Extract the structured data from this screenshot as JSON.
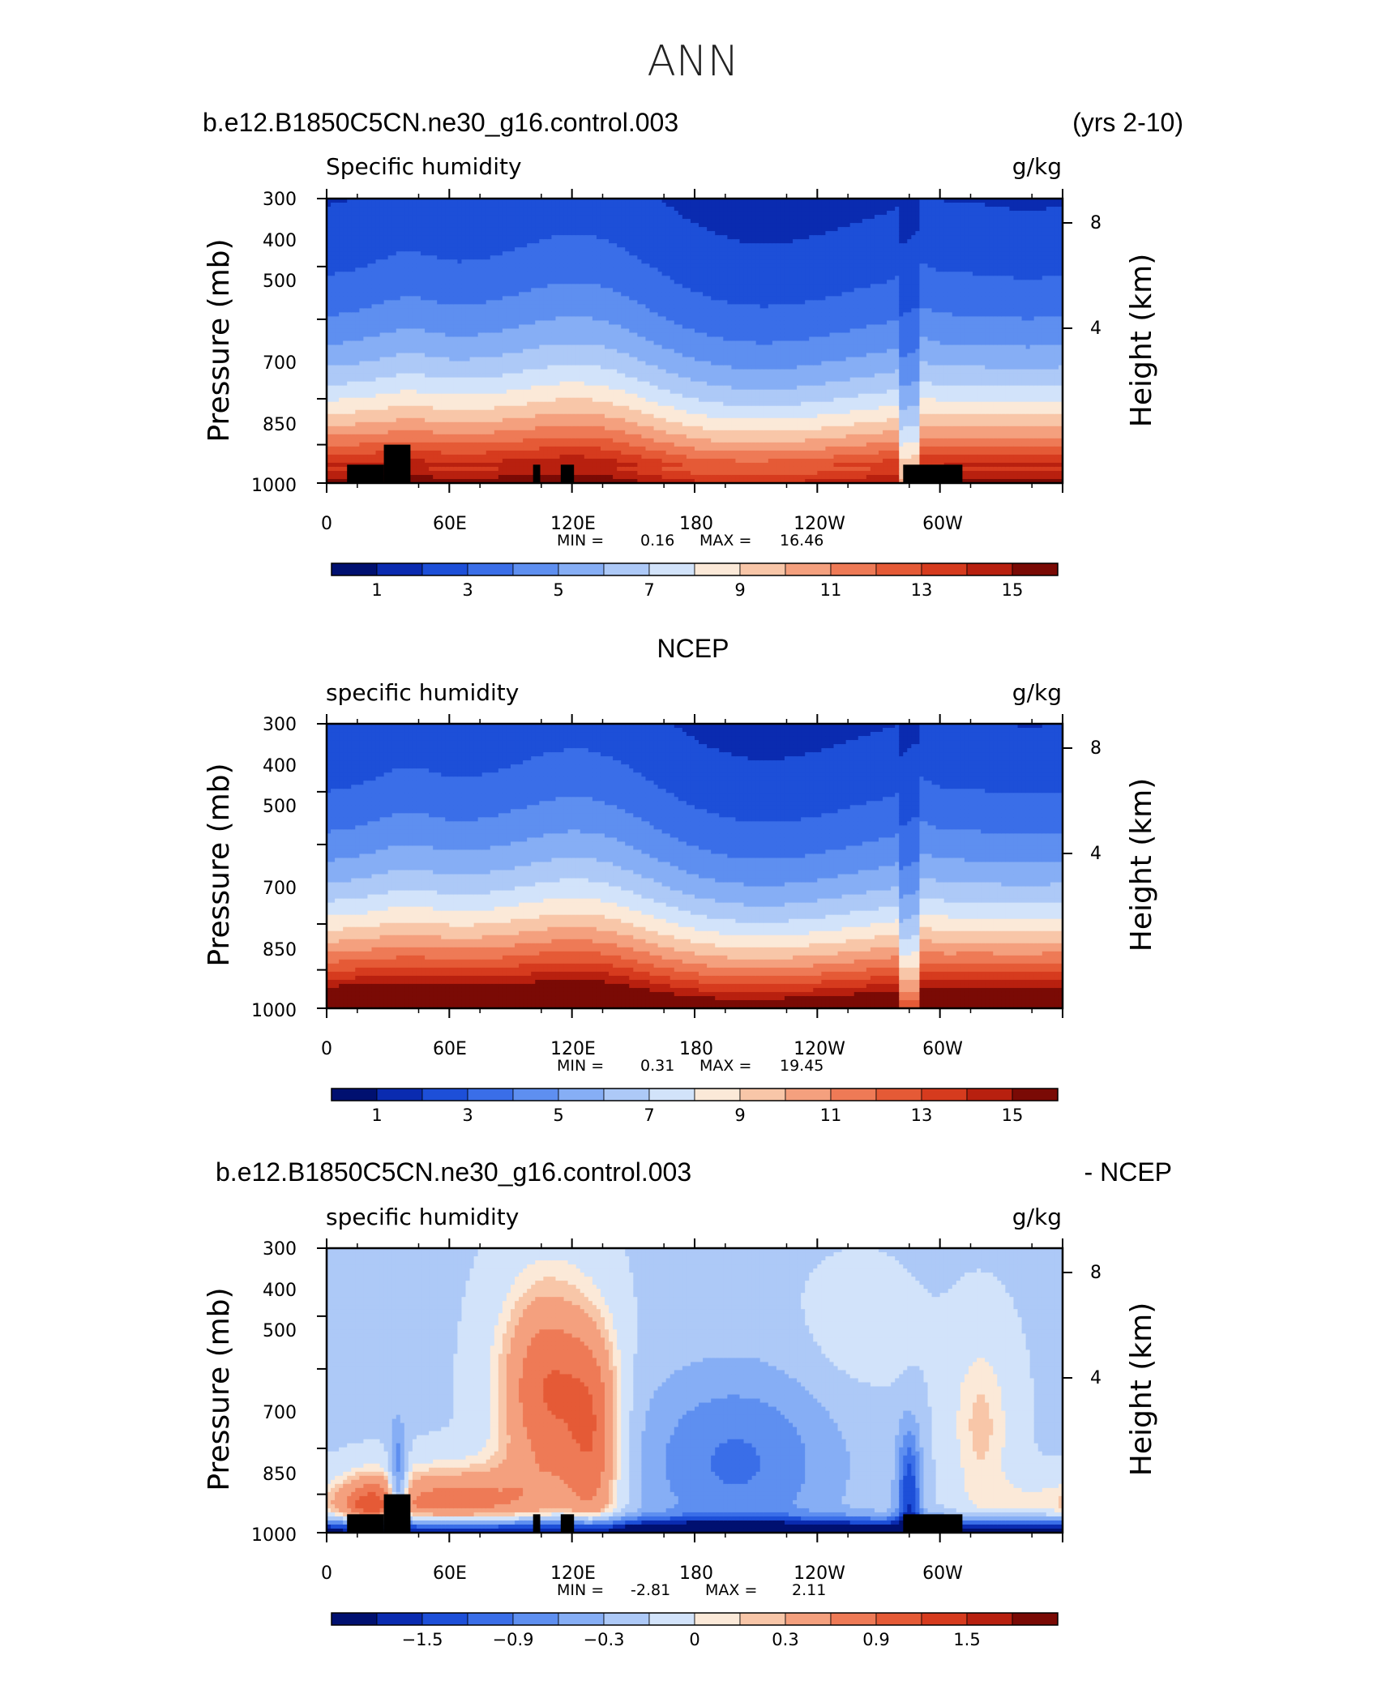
{
  "figure_title": "ANN",
  "chart_data": [
    {
      "type": "heatmap",
      "panel_title_left": "b.e12.B1850C5CN.ne30_g16.control.003",
      "panel_title_right": "(yrs 2-10)",
      "variable": "Specific humidity",
      "units": "g/kg",
      "ylabel": "Pressure (mb)",
      "y2label": "Height (km)",
      "yticks": [
        "300",
        "400",
        "500",
        "700",
        "850",
        "1000"
      ],
      "ytick_values": [
        300,
        400,
        500,
        700,
        850,
        1000
      ],
      "y2ticks": [
        "8",
        "4"
      ],
      "xticks": [
        "0",
        "60E",
        "120E",
        "180",
        "120W",
        "60W"
      ],
      "x_range": [
        0,
        360
      ],
      "min_label": "MIN =",
      "min_value": "0.16",
      "max_label": "MAX =",
      "max_value": "16.46",
      "colorbar_labels": [
        "1",
        "3",
        "5",
        "7",
        "9",
        "11",
        "13",
        "15"
      ],
      "levels": [
        0.5,
        1,
        2,
        3,
        4,
        5,
        6,
        7,
        8,
        9,
        10,
        11,
        12,
        13,
        14,
        15
      ],
      "terrain": true,
      "field": "model"
    },
    {
      "type": "heatmap",
      "panel_title_center": "NCEP",
      "variable": "specific humidity",
      "units": "g/kg",
      "ylabel": "Pressure (mb)",
      "y2label": "Height (km)",
      "yticks": [
        "300",
        "400",
        "500",
        "700",
        "850",
        "1000"
      ],
      "ytick_values": [
        300,
        400,
        500,
        700,
        850,
        1000
      ],
      "y2ticks": [
        "8",
        "4"
      ],
      "xticks": [
        "0",
        "60E",
        "120E",
        "180",
        "120W",
        "60W"
      ],
      "x_range": [
        0,
        360
      ],
      "min_label": "MIN =",
      "min_value": "0.31",
      "max_label": "MAX =",
      "max_value": "19.45",
      "colorbar_labels": [
        "1",
        "3",
        "5",
        "7",
        "9",
        "11",
        "13",
        "15"
      ],
      "levels": [
        0.5,
        1,
        2,
        3,
        4,
        5,
        6,
        7,
        8,
        9,
        10,
        11,
        12,
        13,
        14,
        15
      ],
      "terrain": false,
      "field": "obs"
    },
    {
      "type": "heatmap",
      "panel_title_left": "b.e12.B1850C5CN.ne30_g16.control.003",
      "panel_title_right": "- NCEP",
      "variable": "specific humidity",
      "units": "g/kg",
      "ylabel": "Pressure (mb)",
      "y2label": "Height (km)",
      "yticks": [
        "300",
        "400",
        "500",
        "700",
        "850",
        "1000"
      ],
      "ytick_values": [
        300,
        400,
        500,
        700,
        850,
        1000
      ],
      "y2ticks": [
        "8",
        "4"
      ],
      "xticks": [
        "0",
        "60E",
        "120E",
        "180",
        "120W",
        "60W"
      ],
      "x_range": [
        0,
        360
      ],
      "min_label": "MIN =",
      "min_value": "-2.81",
      "max_label": "MAX =",
      "max_value": "2.11",
      "colorbar_labels": [
        "−1.5",
        "−0.9",
        "−0.3",
        "0",
        "0.3",
        "0.9",
        "1.5"
      ],
      "levels": [
        -2.1,
        -1.8,
        -1.5,
        -1.2,
        -0.9,
        -0.6,
        -0.3,
        0,
        0.15,
        0.3,
        0.6,
        0.9,
        1.2,
        1.5,
        1.8,
        2.1
      ],
      "terrain": true,
      "field": "diff"
    }
  ],
  "colors": {
    "palette": [
      "#001070",
      "#0a2bb0",
      "#1d4fd8",
      "#3a6ee8",
      "#5e8ff0",
      "#86aef5",
      "#adc9f7",
      "#d2e3fa",
      "#fbe9d8",
      "#f8c6a8",
      "#f4a07e",
      "#ee7a56",
      "#e55a36",
      "#d63b1e",
      "#b8200f",
      "#7a0a05"
    ],
    "terrain": "#000000"
  }
}
